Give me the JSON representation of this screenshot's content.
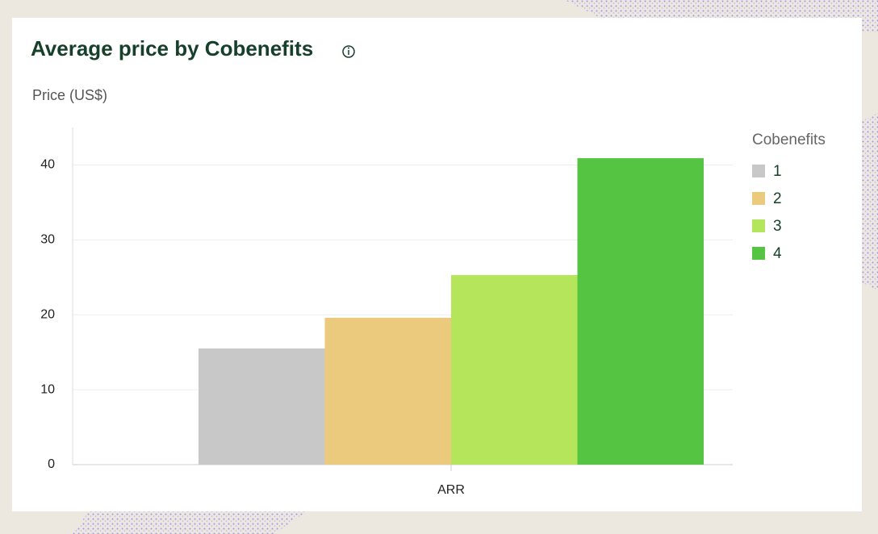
{
  "chart_data": {
    "type": "bar",
    "title": "Average price by Cobenefits",
    "y_axis_label": "Price (US$)",
    "categories": [
      "ARR"
    ],
    "series": [
      {
        "name": "1",
        "color": "#c8c8c8",
        "values": [
          15.5
        ]
      },
      {
        "name": "2",
        "color": "#ebca7e",
        "values": [
          19.6
        ]
      },
      {
        "name": "3",
        "color": "#b5e55b",
        "values": [
          25.3
        ]
      },
      {
        "name": "4",
        "color": "#55c443",
        "values": [
          40.9
        ]
      }
    ],
    "legend_title": "Cobenefits",
    "legend_position": "right",
    "ylim": [
      0,
      45
    ],
    "yticks": [
      0,
      10,
      20,
      30,
      40
    ],
    "grid": true
  }
}
